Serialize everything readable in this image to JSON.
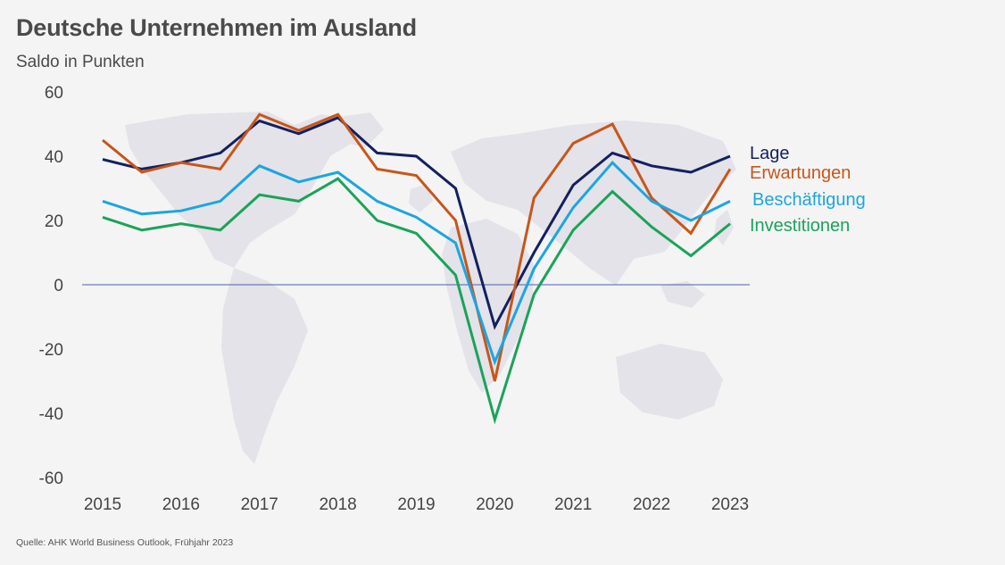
{
  "title": "Deutsche Unternehmen im Ausland",
  "subtitle": "Saldo in Punkten",
  "source": "Quelle: AHK World Business Outlook, Frühjahr 2023",
  "chart_data": {
    "type": "line",
    "title": "Deutsche Unternehmen im Ausland",
    "ylabel": "Saldo in Punkten",
    "xlabel": "",
    "ylim": [
      -60,
      60
    ],
    "yticks": [
      60,
      40,
      20,
      0,
      -20,
      -40,
      -60
    ],
    "xlim": [
      2015,
      2023
    ],
    "xticks": [
      "2015",
      "2016",
      "2017",
      "2018",
      "2019",
      "2020",
      "2021",
      "2022",
      "2023"
    ],
    "x": [
      2015,
      2015.5,
      2016,
      2016.5,
      2017,
      2017.5,
      2018,
      2018.5,
      2019,
      2019.5,
      2020,
      2020.5,
      2021,
      2021.5,
      2022,
      2022.5,
      2023
    ],
    "zero_line": true,
    "legend_position": "right",
    "series": [
      {
        "name": "Lage",
        "color": "#14205e",
        "values": [
          39,
          36,
          38,
          41,
          51,
          47,
          52,
          41,
          40,
          30,
          -13,
          10,
          31,
          41,
          37,
          35,
          40
        ]
      },
      {
        "name": "Erwartungen",
        "color": "#c8561a",
        "values": [
          45,
          35,
          38,
          36,
          53,
          48,
          53,
          36,
          34,
          20,
          -30,
          27,
          44,
          50,
          27,
          16,
          36
        ]
      },
      {
        "name": "Beschäftigung",
        "color": "#1ba6e0",
        "values": [
          26,
          22,
          23,
          26,
          37,
          32,
          35,
          26,
          21,
          13,
          -24,
          5,
          24,
          38,
          26,
          20,
          26
        ]
      },
      {
        "name": "Investitionen",
        "color": "#1aa35a",
        "values": [
          21,
          17,
          19,
          17,
          28,
          26,
          33,
          20,
          16,
          3,
          -42,
          -3,
          17,
          29,
          18,
          9,
          19
        ]
      }
    ]
  }
}
